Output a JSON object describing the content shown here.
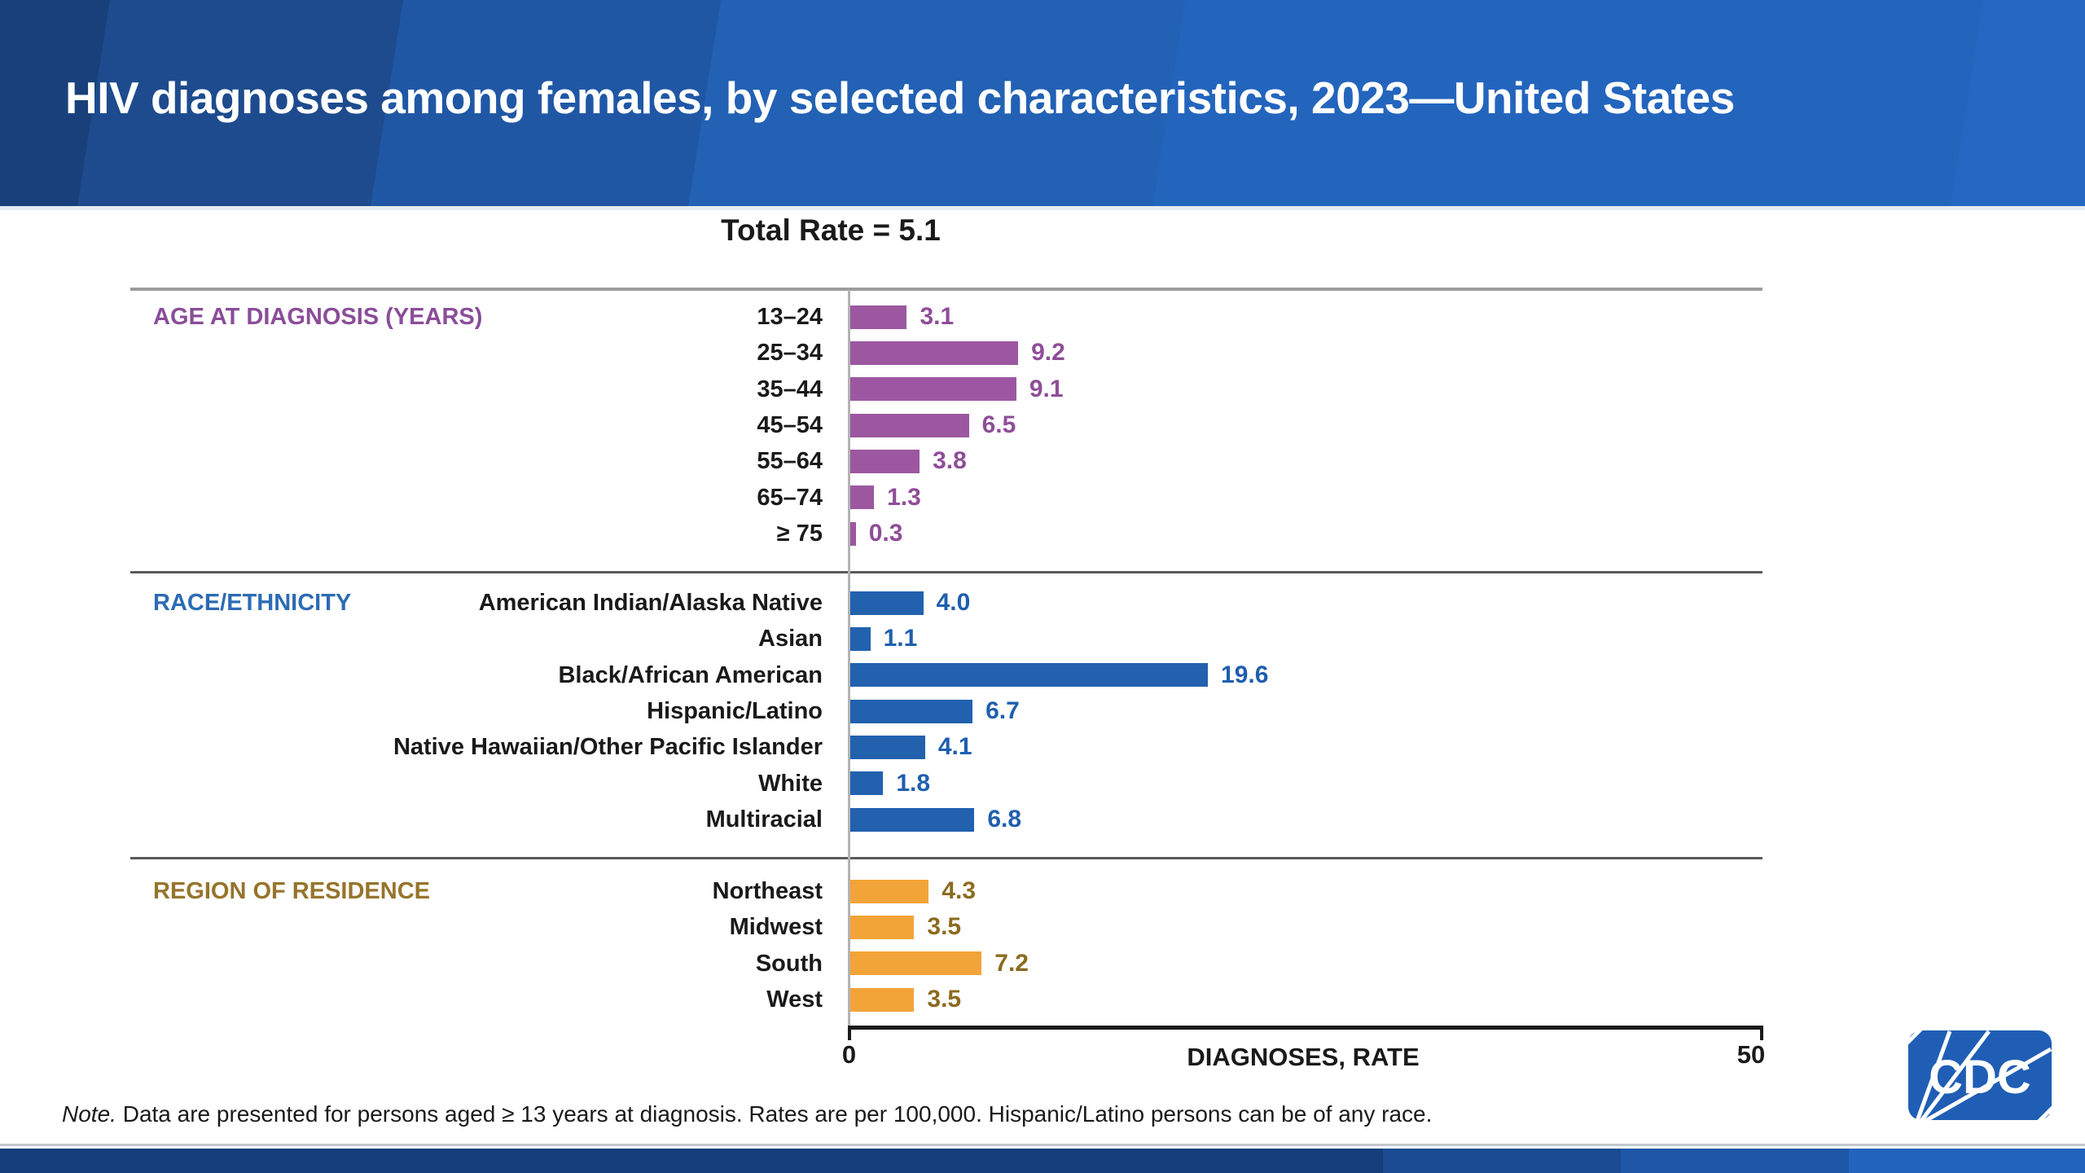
{
  "slide": {
    "title": "HIV diagnoses among females, by selected characteristics, 2023—United States",
    "note_prefix": "Note.",
    "note_body": " Data are presented for persons aged ≥ 13 years at diagnosis. Rates are per 100,000. Hispanic/Latino persons can be of any race.",
    "logo_text": "CDC",
    "accent_colors": {
      "banner_blue": "#2261b3",
      "footer_navy": "#163e7a",
      "logo_blue": "#1f5eb4"
    }
  },
  "chart_data": {
    "type": "bar",
    "orientation": "horizontal",
    "title": "Total Rate = 5.1",
    "xlabel": "DIAGNOSES, RATE",
    "xlim": [
      0,
      50
    ],
    "tick_labels": [
      "0",
      "50"
    ],
    "grid": false,
    "legend": false,
    "sections": [
      {
        "id": "age",
        "label": "AGE AT DIAGNOSIS (YEARS)",
        "label_color": "#8a4d98",
        "bar_color": "#9c57a0",
        "value_color": "#8f4d98",
        "categories": [
          "13–24",
          "25–34",
          "35–44",
          "45–54",
          "55–64",
          "65–74",
          "≥ 75"
        ],
        "values": [
          3.1,
          9.2,
          9.1,
          6.5,
          3.8,
          1.3,
          0.3
        ]
      },
      {
        "id": "race",
        "label": "RACE/ETHNICITY",
        "label_color": "#2d6bb4",
        "bar_color": "#2161ae",
        "value_color": "#1f5fae",
        "categories": [
          "American Indian/Alaska Native",
          "Asian",
          "Black/African American",
          "Hispanic/Latino",
          "Native Hawaiian/Other Pacific Islander",
          "White",
          "Multiracial"
        ],
        "values": [
          4.0,
          1.1,
          19.6,
          6.7,
          4.1,
          1.8,
          6.8
        ]
      },
      {
        "id": "region",
        "label": "REGION OF RESIDENCE",
        "label_color": "#96742b",
        "bar_color": "#f2a438",
        "value_color": "#8c6b20",
        "categories": [
          "Northeast",
          "Midwest",
          "South",
          "West"
        ],
        "values": [
          4.3,
          3.5,
          7.2,
          3.5
        ]
      }
    ]
  }
}
